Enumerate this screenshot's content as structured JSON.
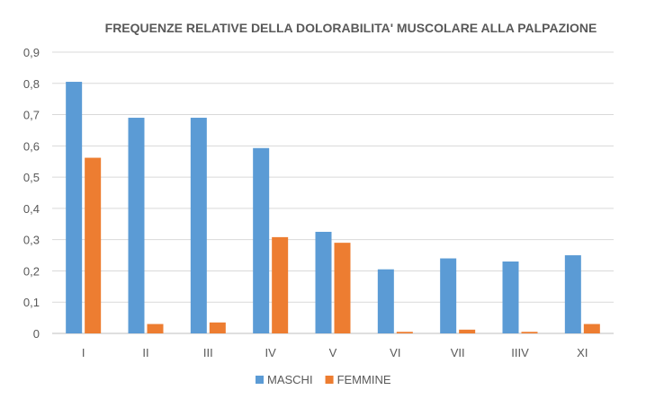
{
  "chart_data": {
    "type": "bar",
    "title": "FREQUENZE RELATIVE DELLA DOLORABILITA' MUSCOLARE ALLA PALPAZIONE",
    "xlabel": "",
    "ylabel": "",
    "categories": [
      "I",
      "II",
      "III",
      "IV",
      "V",
      "VI",
      "VII",
      "IIIV",
      "XI"
    ],
    "series": [
      {
        "name": "MASCHI",
        "color": "#5b9bd5",
        "values": [
          0.805,
          0.69,
          0.69,
          0.593,
          0.325,
          0.205,
          0.24,
          0.23,
          0.25
        ]
      },
      {
        "name": "FEMMINE",
        "color": "#ed7d31",
        "values": [
          0.562,
          0.03,
          0.035,
          0.308,
          0.29,
          0.005,
          0.012,
          0.005,
          0.03
        ]
      }
    ],
    "ylim": [
      0,
      0.9
    ],
    "yticks": [
      "0",
      "0,1",
      "0,2",
      "0,3",
      "0,4",
      "0,5",
      "0,6",
      "0,7",
      "0,8",
      "0,9"
    ],
    "grid": true,
    "legend_position": "bottom"
  }
}
